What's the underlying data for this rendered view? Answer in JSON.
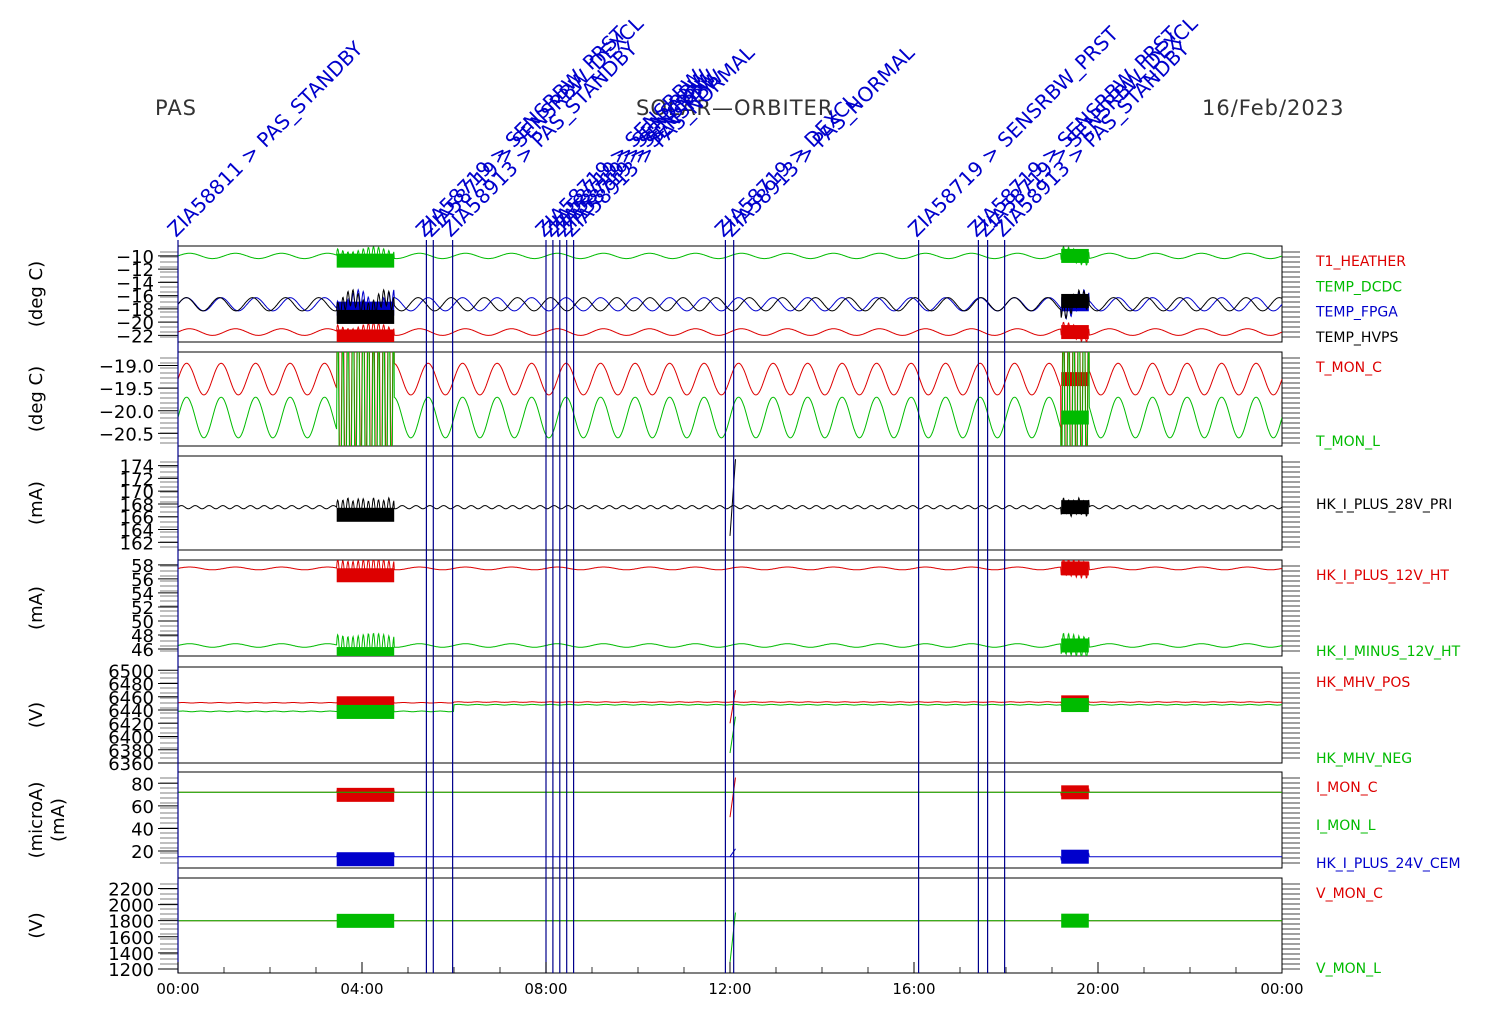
{
  "header": {
    "left": "PAS",
    "center": "SOLAR—ORBITER",
    "right": "16/Feb/2023"
  },
  "events": [
    {
      "t": 0.0,
      "label": "ZIA58811 > PAS_STANDBY"
    },
    {
      "t": 5.4,
      "label": "ZIA58719 > SENSRBW_PRST"
    },
    {
      "t": 5.55,
      "label": "ZIA58719 > SENSRBW_DEXCL"
    },
    {
      "t": 5.97,
      "label": "ZIA58913 > PAS_STANDBY"
    },
    {
      "t": 8.0,
      "label": "ZIA58719 > SENSRBW"
    },
    {
      "t": 8.15,
      "label": "ZIA58719 > SENSRBW"
    },
    {
      "t": 8.3,
      "label": "ZIA58719 > SENSRBW"
    },
    {
      "t": 8.45,
      "label": "ZIA58719 > SENSRBW"
    },
    {
      "t": 8.6,
      "label": "ZIA58913 > PAS_NORMAL"
    },
    {
      "t": 11.9,
      "label": "ZIA58719 > DEXCL"
    },
    {
      "t": 12.08,
      "label": "ZIA58913 > PAS_NORMAL"
    },
    {
      "t": 16.1,
      "label": "ZIA58719 > SENSRBW_PRST"
    },
    {
      "t": 17.4,
      "label": "ZIA58719 > SENSRBW_PRST"
    },
    {
      "t": 17.6,
      "label": "ZIA58719 > SENSRBW_DEXCL"
    },
    {
      "t": 17.97,
      "label": "ZIA58913 > PAS_STANDBY"
    }
  ],
  "chart_data": [
    {
      "type": "line",
      "ylabel": "(deg C)",
      "ylim": [
        -23,
        -8.5
      ],
      "yticks": [
        -10,
        -12,
        -14,
        -16,
        -18,
        -20,
        -22
      ],
      "ticklabels": [
        "−10",
        "−12",
        "−14",
        "−16",
        "−18",
        "−20",
        "−22"
      ],
      "series": [
        {
          "name": "T1_HEATHER",
          "color": "#dd0000",
          "base": -21.5,
          "amp": 0.5,
          "period": 1.0,
          "burst": 1.0
        },
        {
          "name": "TEMP_DCDC",
          "color": "#00bb00",
          "base": -10.0,
          "amp": 0.4,
          "period": 1.0,
          "burst": 1.0
        },
        {
          "name": "TEMP_FPGA",
          "color": "#0000cc",
          "base": -17.3,
          "amp": 1.0,
          "period": 0.75,
          "burst": 1.2
        },
        {
          "name": "TEMP_HVPS",
          "color": "#000000",
          "base": -17.3,
          "amp": 1.0,
          "period": 0.72,
          "burst": 1.2
        }
      ]
    },
    {
      "type": "line",
      "ylabel": "(deg C)",
      "ylim": [
        -20.78,
        -18.7
      ],
      "yticks": [
        -19.0,
        -19.5,
        -20.0,
        -20.5
      ],
      "ticklabels": [
        "−19.0",
        "−19.5",
        "−20.0",
        "−20.5"
      ],
      "series": [
        {
          "name": "T_MON_C",
          "color": "#dd0000",
          "base": -19.3,
          "amp": 0.35,
          "period": 0.75,
          "burst": 2.5
        },
        {
          "name": "T_MON_L",
          "color": "#00bb00",
          "base": -20.15,
          "amp": 0.45,
          "period": 0.75,
          "burst": 2.5
        }
      ]
    },
    {
      "type": "line",
      "ylabel": "(mA)",
      "ylim": [
        160.8,
        175.5
      ],
      "yticks": [
        162,
        164,
        166,
        168,
        170,
        172,
        174
      ],
      "ticklabels": [
        "162",
        "164",
        "166",
        "168",
        "170",
        "172",
        "174"
      ],
      "series": [
        {
          "name": "HK_I_PLUS_28V_PRI",
          "color": "#000000",
          "base": 167.5,
          "amp": 0.25,
          "period": 0.3,
          "burst": 1.2,
          "spike": [
            12.0,
            175.0,
            163.0
          ]
        }
      ]
    },
    {
      "type": "line",
      "ylabel": "(mA)",
      "ylim": [
        45.0,
        58.7
      ],
      "yticks": [
        46,
        48,
        50,
        52,
        54,
        56,
        58
      ],
      "ticklabels": [
        "46",
        "48",
        "50",
        "52",
        "54",
        "56",
        "58"
      ],
      "series": [
        {
          "name": "HK_I_PLUS_12V_HT",
          "color": "#dd0000",
          "base": 57.5,
          "amp": 0.2,
          "period": 1.0,
          "burst": 1.2
        },
        {
          "name": "HK_I_MINUS_12V_HT",
          "color": "#00bb00",
          "base": 46.5,
          "amp": 0.25,
          "period": 1.0,
          "burst": 1.5
        }
      ]
    },
    {
      "type": "line",
      "ylabel": "(V)",
      "ylim": [
        6360,
        6505
      ],
      "yticks": [
        6500,
        6480,
        6460,
        6440,
        6420,
        6400,
        6380,
        6360
      ],
      "ticklabels": [
        "6500",
        "6480",
        "6460",
        "6440",
        "6420",
        "6400",
        "6380",
        "6360"
      ],
      "series": [
        {
          "name": "HK_MHV_POS",
          "color": "#dd0000",
          "base": 6451,
          "amp": 0.4,
          "period": 0.4,
          "burst": 1.3,
          "steps": [
            [
              6.0,
              6452
            ]
          ],
          "spike": [
            12.0,
            6470,
            6420
          ]
        },
        {
          "name": "HK_MHV_NEG",
          "color": "#00bb00",
          "base": 6438,
          "amp": 0.5,
          "period": 0.4,
          "burst": 1.5,
          "steps": [
            [
              6.0,
              6448
            ]
          ],
          "spike": [
            12.0,
            6430,
            6375
          ]
        }
      ]
    },
    {
      "type": "line",
      "ylabel": "(microA)",
      "ylabel2": "(mA)",
      "ylim": [
        5,
        90
      ],
      "yticks": [
        20,
        40,
        60,
        80
      ],
      "ticklabels": [
        "20",
        "40",
        "60",
        "80"
      ],
      "series": [
        {
          "name": "I_MON_C",
          "color": "#dd0000",
          "base": 72,
          "amp": 0.0,
          "period": 1.0,
          "burst": 2.5,
          "spike": [
            12.0,
            85,
            50
          ]
        },
        {
          "name": "I_MON_L",
          "color": "#00bb00",
          "base": 72,
          "amp": 0.0,
          "period": 1.0,
          "burst": 0.0
        },
        {
          "name": "HK_I_PLUS_24V_CEM",
          "color": "#0000cc",
          "base": 15,
          "amp": 0.0,
          "period": 1.0,
          "burst": 2.5,
          "spike": [
            12.0,
            22,
            15
          ]
        }
      ]
    },
    {
      "type": "line",
      "ylabel": "(V)",
      "ylim": [
        1150,
        2330
      ],
      "yticks": [
        1200,
        1400,
        1600,
        1800,
        2000,
        2200
      ],
      "ticklabels": [
        "1200",
        "1400",
        "1600",
        "1800",
        "2000",
        "2200"
      ],
      "series": [
        {
          "name": "V_MON_C",
          "color": "#dd0000",
          "base": 1800,
          "amp": 0.0,
          "period": 1.0,
          "burst": 0.0
        },
        {
          "name": "V_MON_L",
          "color": "#00bb00",
          "base": 1800,
          "amp": 0.0,
          "period": 1.0,
          "burst": 2.5,
          "spike": [
            12.0,
            1900,
            1280
          ]
        }
      ]
    }
  ],
  "x_axis": {
    "range": [
      0,
      24
    ],
    "ticks": [
      0,
      4,
      8,
      12,
      16,
      20,
      24
    ],
    "ticklabels": [
      "00:00",
      "04:00",
      "08:00",
      "12:00",
      "16:00",
      "20:00",
      "00:00"
    ]
  },
  "bursts": [
    [
      3.45,
      4.7
    ],
    [
      19.2,
      19.8
    ]
  ]
}
